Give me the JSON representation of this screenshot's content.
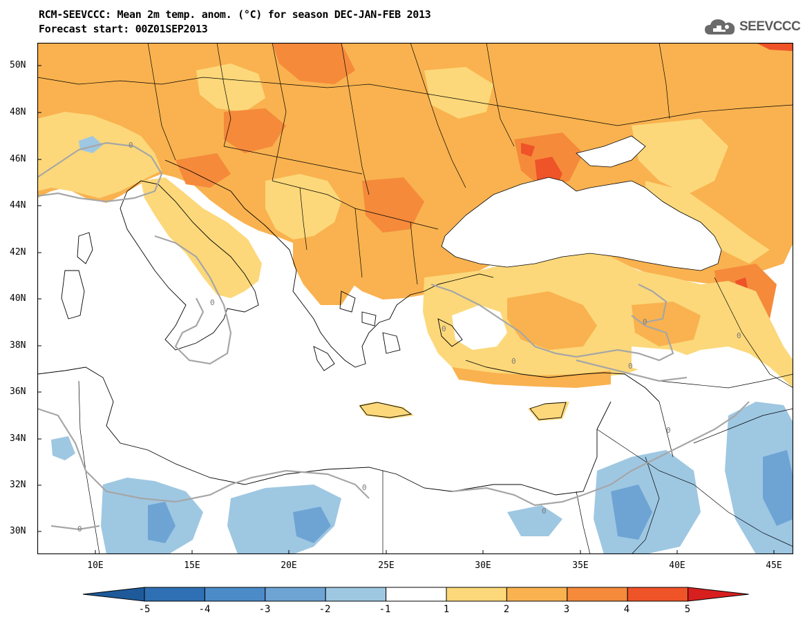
{
  "title_line1": "RCM-SEEVCCC: Mean 2m temp. anom. (°C) for season DEC-JAN-FEB 2013",
  "title_line2": "Forecast start: 00Z01SEP2013",
  "logo_text": "SEEVCCC",
  "lat_labels": [
    "50N",
    "48N",
    "46N",
    "44N",
    "42N",
    "40N",
    "38N",
    "36N",
    "34N",
    "32N",
    "30N"
  ],
  "lon_labels": [
    "10E",
    "15E",
    "20E",
    "25E",
    "30E",
    "35E",
    "40E",
    "45E"
  ],
  "contour_label": "0",
  "colorbar": {
    "ticks": [
      "-5",
      "-4",
      "-3",
      "-2",
      "-1",
      "1",
      "2",
      "3",
      "4",
      "5"
    ],
    "colors": [
      "#1e5a9a",
      "#2f6fb3",
      "#4b8bc8",
      "#6ea4d4",
      "#9ec7e2",
      "#ffffff",
      "#fcd87a",
      "#f9b24f",
      "#f58a3b",
      "#ef5328",
      "#d71f1f"
    ]
  },
  "palette": {
    "ocean": "#ffffff",
    "warm1": "#fcd87a",
    "warm2": "#f9b24f",
    "warm3": "#f58a3b",
    "warm4": "#ef5328",
    "cool1": "#9ec7e2",
    "cool2": "#6ea4d4",
    "contour": "#a6a6a6"
  }
}
